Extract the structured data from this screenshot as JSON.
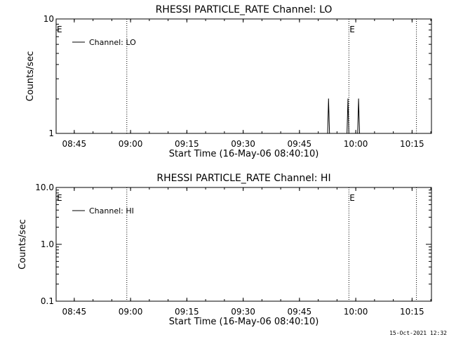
{
  "chart_data": [
    {
      "type": "line",
      "title": "RHESSI PARTICLE_RATE Channel: LO",
      "xlabel": "Start Time (16-May-06 08:40:10)",
      "ylabel": "Counts/sec",
      "yscale": "log",
      "ylim": [
        1,
        10
      ],
      "xlim": [
        "08:40:10",
        "10:20:10"
      ],
      "x_tick_labels": [
        "08:45",
        "09:00",
        "09:15",
        "09:30",
        "09:45",
        "10:00",
        "10:15"
      ],
      "y_tick_labels": [
        "1",
        "10"
      ],
      "grid": false,
      "legend_position": "top-left",
      "series": [
        {
          "name": "Channel: LO",
          "points": [
            [
              "09:52:30",
              1
            ],
            [
              "09:52:45",
              2
            ],
            [
              "09:53:00",
              1
            ],
            [
              "09:57:40",
              1
            ],
            [
              "09:57:55",
              2
            ],
            [
              "09:58:10",
              1
            ],
            [
              "10:00:30",
              1
            ],
            [
              "10:00:45",
              2
            ],
            [
              "10:01:00",
              1
            ]
          ]
        }
      ],
      "vlines": [
        {
          "time": "08:59:00",
          "style": "dotted"
        },
        {
          "time": "09:58:10",
          "style": "dotted",
          "label": "E"
        },
        {
          "time": "10:16:10",
          "style": "dotted"
        }
      ],
      "edge_markers": [
        {
          "time": "08:40:10",
          "label": "E"
        }
      ]
    },
    {
      "type": "line",
      "title": "RHESSI PARTICLE_RATE Channel: HI",
      "xlabel": "Start Time (16-May-06 08:40:10)",
      "ylabel": "Counts/sec",
      "yscale": "log",
      "ylim": [
        0.1,
        10.0
      ],
      "xlim": [
        "08:40:10",
        "10:20:10"
      ],
      "x_tick_labels": [
        "08:45",
        "09:00",
        "09:15",
        "09:30",
        "09:45",
        "10:00",
        "10:15"
      ],
      "y_tick_labels": [
        "0.1",
        "1.0",
        "10.0"
      ],
      "grid": false,
      "legend_position": "top-left",
      "series": [
        {
          "name": "Channel: HI",
          "points": []
        }
      ],
      "vlines": [
        {
          "time": "08:59:00",
          "style": "dotted"
        },
        {
          "time": "09:58:10",
          "style": "dotted",
          "label": "E"
        },
        {
          "time": "10:16:10",
          "style": "dotted"
        }
      ],
      "edge_markers": [
        {
          "time": "08:40:10",
          "label": "E"
        }
      ]
    }
  ],
  "footer": {
    "timestamp": "15-Oct-2021 12:32"
  }
}
